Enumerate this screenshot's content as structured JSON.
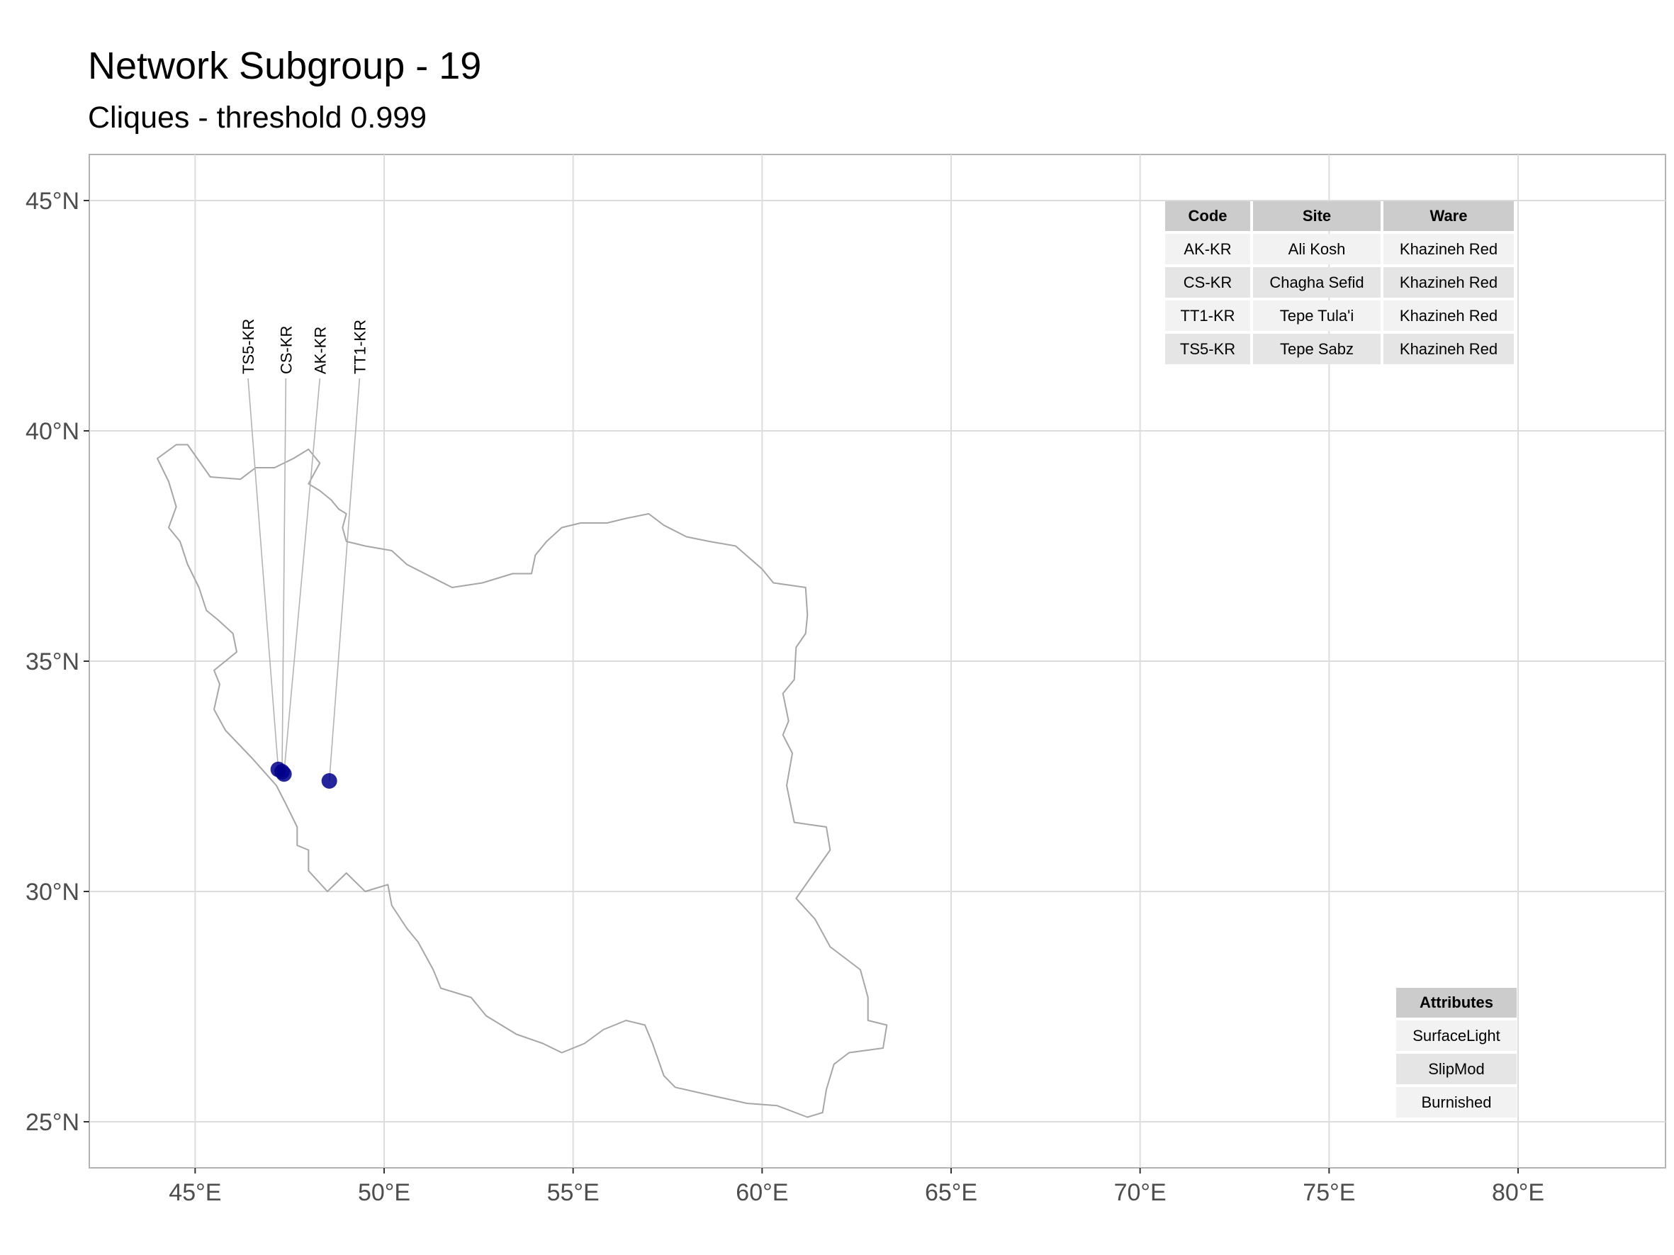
{
  "title": "Network Subgroup - 19",
  "subtitle": "Cliques - threshold 0.999",
  "axes": {
    "x_ticks": [
      {
        "value": 45,
        "label": "45°E"
      },
      {
        "value": 50,
        "label": "50°E"
      },
      {
        "value": 55,
        "label": "55°E"
      },
      {
        "value": 60,
        "label": "60°E"
      },
      {
        "value": 65,
        "label": "65°E"
      },
      {
        "value": 70,
        "label": "70°E"
      },
      {
        "value": 75,
        "label": "75°E"
      },
      {
        "value": 80,
        "label": "80°E"
      }
    ],
    "y_ticks": [
      {
        "value": 45,
        "label": "45°N"
      },
      {
        "value": 40,
        "label": "40°N"
      },
      {
        "value": 35,
        "label": "35°N"
      },
      {
        "value": 30,
        "label": "30°N"
      },
      {
        "value": 25,
        "label": "25°N"
      }
    ],
    "xlim": [
      42.2,
      83.9
    ],
    "ylim": [
      24.0,
      46.0
    ],
    "grid": true
  },
  "colors": {
    "point": "#00008b",
    "border": "#a6a6a6",
    "grid": "#dcdcdc",
    "panel_border": "#b3b3b3"
  },
  "sites": [
    {
      "code": "TS5-KR",
      "lon": 47.2,
      "lat": 32.65,
      "label_lon": 46.4
    },
    {
      "code": "CS-KR",
      "lon": 47.3,
      "lat": 32.6,
      "label_lon": 47.4
    },
    {
      "code": "AK-KR",
      "lon": 47.35,
      "lat": 32.55,
      "label_lon": 48.3
    },
    {
      "code": "TT1-KR",
      "lon": 48.55,
      "lat": 32.4,
      "label_lon": 49.35
    }
  ],
  "iran_outline": [
    [
      44.8,
      39.7
    ],
    [
      45.4,
      39.0
    ],
    [
      46.2,
      38.95
    ],
    [
      46.6,
      39.2
    ],
    [
      47.1,
      39.2
    ],
    [
      47.6,
      39.4
    ],
    [
      48.0,
      39.6
    ],
    [
      48.3,
      39.3
    ],
    [
      48.0,
      38.85
    ],
    [
      48.3,
      38.7
    ],
    [
      48.6,
      38.5
    ],
    [
      48.8,
      38.3
    ],
    [
      49.0,
      38.2
    ],
    [
      48.9,
      37.9
    ],
    [
      49.0,
      37.6
    ],
    [
      49.5,
      37.5
    ],
    [
      50.2,
      37.4
    ],
    [
      50.6,
      37.1
    ],
    [
      51.2,
      36.85
    ],
    [
      51.8,
      36.6
    ],
    [
      52.6,
      36.7
    ],
    [
      53.4,
      36.9
    ],
    [
      53.9,
      36.9
    ],
    [
      54.0,
      37.3
    ],
    [
      54.3,
      37.6
    ],
    [
      54.7,
      37.9
    ],
    [
      55.2,
      38.0
    ],
    [
      55.9,
      38.0
    ],
    [
      56.4,
      38.1
    ],
    [
      57.0,
      38.2
    ],
    [
      57.4,
      37.95
    ],
    [
      58.0,
      37.7
    ],
    [
      58.6,
      37.6
    ],
    [
      59.3,
      37.5
    ],
    [
      60.0,
      37.0
    ],
    [
      60.3,
      36.7
    ],
    [
      61.15,
      36.6
    ],
    [
      61.2,
      36.0
    ],
    [
      61.15,
      35.6
    ],
    [
      60.9,
      35.3
    ],
    [
      60.85,
      34.6
    ],
    [
      60.55,
      34.3
    ],
    [
      60.7,
      33.7
    ],
    [
      60.55,
      33.4
    ],
    [
      60.8,
      33.0
    ],
    [
      60.65,
      32.3
    ],
    [
      60.85,
      31.5
    ],
    [
      61.7,
      31.4
    ],
    [
      61.8,
      30.9
    ],
    [
      60.9,
      29.85
    ],
    [
      61.4,
      29.4
    ],
    [
      61.8,
      28.8
    ],
    [
      62.6,
      28.3
    ],
    [
      62.8,
      27.7
    ],
    [
      62.8,
      27.2
    ],
    [
      63.3,
      27.1
    ],
    [
      63.2,
      26.6
    ],
    [
      62.3,
      26.5
    ],
    [
      61.9,
      26.25
    ],
    [
      61.7,
      25.7
    ],
    [
      61.6,
      25.2
    ],
    [
      61.2,
      25.1
    ],
    [
      60.4,
      25.35
    ],
    [
      59.6,
      25.4
    ],
    [
      58.5,
      25.6
    ],
    [
      57.7,
      25.75
    ],
    [
      57.4,
      26.0
    ],
    [
      57.1,
      26.7
    ],
    [
      56.9,
      27.1
    ],
    [
      56.4,
      27.2
    ],
    [
      55.8,
      27.0
    ],
    [
      55.3,
      26.7
    ],
    [
      54.7,
      26.5
    ],
    [
      54.2,
      26.7
    ],
    [
      53.5,
      26.9
    ],
    [
      52.7,
      27.3
    ],
    [
      52.3,
      27.7
    ],
    [
      51.5,
      27.9
    ],
    [
      51.3,
      28.3
    ],
    [
      50.9,
      28.9
    ],
    [
      50.6,
      29.2
    ],
    [
      50.2,
      29.7
    ],
    [
      50.1,
      30.15
    ],
    [
      49.5,
      30.0
    ],
    [
      49.0,
      30.4
    ],
    [
      48.5,
      30.0
    ],
    [
      48.0,
      30.45
    ],
    [
      48.0,
      30.9
    ],
    [
      47.7,
      31.0
    ],
    [
      47.7,
      31.4
    ],
    [
      47.4,
      31.9
    ],
    [
      47.15,
      32.3
    ],
    [
      46.5,
      32.9
    ],
    [
      45.8,
      33.5
    ],
    [
      45.5,
      33.95
    ],
    [
      45.65,
      34.5
    ],
    [
      45.5,
      34.8
    ],
    [
      46.1,
      35.2
    ],
    [
      46.0,
      35.6
    ],
    [
      45.6,
      35.9
    ],
    [
      45.3,
      36.1
    ],
    [
      45.1,
      36.6
    ],
    [
      44.8,
      37.1
    ],
    [
      44.6,
      37.6
    ],
    [
      44.3,
      37.9
    ],
    [
      44.5,
      38.35
    ],
    [
      44.3,
      38.9
    ],
    [
      44.0,
      39.4
    ],
    [
      44.5,
      39.7
    ],
    [
      44.8,
      39.7
    ]
  ],
  "site_table": {
    "headers": [
      "Code",
      "Site",
      "Ware"
    ],
    "rows": [
      [
        "AK-KR",
        "Ali Kosh",
        "Khazineh Red"
      ],
      [
        "CS-KR",
        "Chagha Sefid",
        "Khazineh Red"
      ],
      [
        "TT1-KR",
        "Tepe Tula'i",
        "Khazineh Red"
      ],
      [
        "TS5-KR",
        "Tepe Sabz",
        "Khazineh Red"
      ]
    ]
  },
  "attributes_table": {
    "header": "Attributes",
    "rows": [
      "SurfaceLight",
      "SlipMod",
      "Burnished"
    ]
  }
}
